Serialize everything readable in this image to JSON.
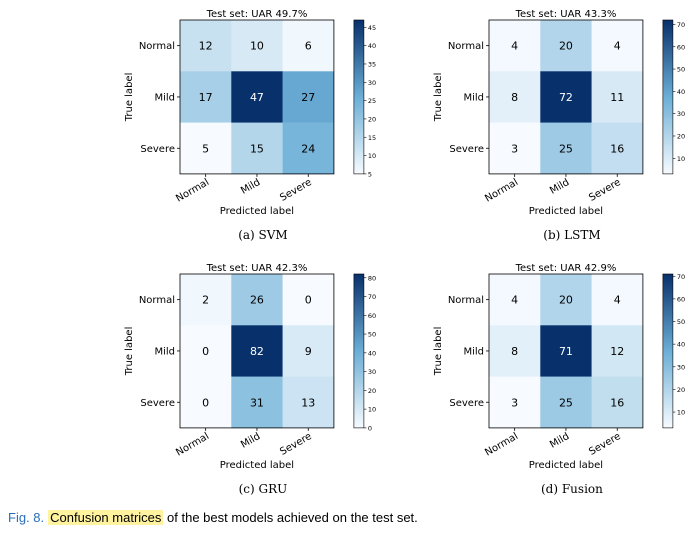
{
  "axes_text": {
    "row_labels": [
      "Normal",
      "Mild",
      "Severe"
    ],
    "col_labels": [
      "Normal",
      "Mild",
      "Severe"
    ],
    "xlabel": "Predicted label",
    "ylabel": "True label"
  },
  "chart_data": [
    {
      "type": "heatmap",
      "id": "svm",
      "title": "Test set: UAR 49.7%",
      "subcaption": "(a)  SVM",
      "values": [
        [
          12,
          10,
          6
        ],
        [
          17,
          47,
          27
        ],
        [
          5,
          15,
          24
        ]
      ],
      "colorbar": {
        "min": 5,
        "max": 47,
        "ticks": [
          5,
          10,
          15,
          20,
          25,
          30,
          35,
          40,
          45
        ]
      }
    },
    {
      "type": "heatmap",
      "id": "lstm",
      "title": "Test set: UAR 43.3%",
      "subcaption": "(b)  LSTM",
      "values": [
        [
          4,
          20,
          4
        ],
        [
          8,
          72,
          11
        ],
        [
          3,
          25,
          16
        ]
      ],
      "colorbar": {
        "min": 3,
        "max": 72,
        "ticks": [
          10,
          20,
          30,
          40,
          50,
          60,
          70
        ]
      }
    },
    {
      "type": "heatmap",
      "id": "gru",
      "title": "Test set: UAR 42.3%",
      "subcaption": "(c)  GRU",
      "values": [
        [
          2,
          26,
          0
        ],
        [
          0,
          82,
          9
        ],
        [
          0,
          31,
          13
        ]
      ],
      "colorbar": {
        "min": 0,
        "max": 82,
        "ticks": [
          0,
          10,
          20,
          30,
          40,
          50,
          60,
          70,
          80
        ]
      }
    },
    {
      "type": "heatmap",
      "id": "fusion",
      "title": "Test set: UAR 42.9%",
      "subcaption": "(d)  Fusion",
      "values": [
        [
          4,
          20,
          4
        ],
        [
          8,
          71,
          12
        ],
        [
          3,
          25,
          16
        ]
      ],
      "colorbar": {
        "min": 3,
        "max": 71,
        "ticks": [
          10,
          20,
          30,
          40,
          50,
          60,
          70
        ]
      }
    }
  ],
  "caption": {
    "label": "Fig. 8.",
    "highlight": "Confusion matrices",
    "rest": " of the best models achieved on the test set."
  },
  "colors": {
    "low": "#f7fbff",
    "high": "#08306b",
    "figure_label": "#2a6ebb",
    "highlight": "#fff3a0"
  }
}
